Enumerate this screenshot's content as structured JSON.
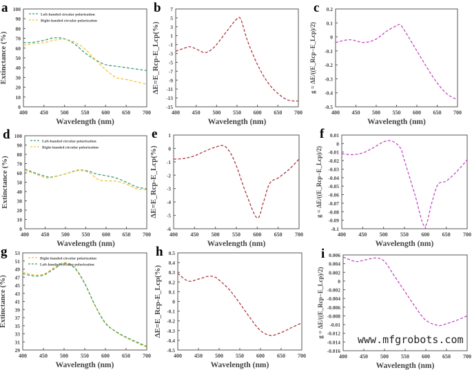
{
  "watermark": "www.mfgrobots.com",
  "colors": {
    "left": "#3aa071",
    "right": "#f2c23c",
    "delta": "#b0353f",
    "g": "#c24ac4"
  },
  "chart_data": [
    {
      "panel": "a",
      "type": "line",
      "xlabel": "Wavelength (nm)",
      "ylabel": "Extinctance (%)",
      "xlim": [
        400,
        700
      ],
      "ylim": [
        0,
        100
      ],
      "xticks": [
        "400",
        "450",
        "500",
        "550",
        "600",
        "650",
        "700"
      ],
      "yticks": [
        "0",
        "10",
        "20",
        "30",
        "40",
        "50",
        "60",
        "70",
        "80",
        "90",
        "100"
      ],
      "legend": "top-left",
      "grid": false,
      "series": [
        {
          "name": "Left-handed circular polarization",
          "color": "left",
          "x": [
            400,
            425,
            450,
            475,
            500,
            525,
            550,
            575,
            600,
            625,
            650,
            675,
            700
          ],
          "y": [
            65.5,
            66,
            68,
            70.5,
            69.5,
            64,
            55,
            48,
            43,
            41.5,
            40,
            38.5,
            37
          ]
        },
        {
          "name": "Right-handed circular polarization",
          "color": "right",
          "x": [
            400,
            425,
            450,
            475,
            500,
            525,
            550,
            575,
            600,
            625,
            650,
            675,
            700
          ],
          "y": [
            63,
            64.5,
            65.5,
            68,
            69,
            66,
            59,
            48,
            38,
            30,
            28,
            25.5,
            23
          ]
        }
      ]
    },
    {
      "panel": "b",
      "type": "line",
      "xlabel": "Wavelength (nm)",
      "ylabel": "ΔE=E_Rcp-E_Lcp(%)",
      "xlim": [
        400,
        700
      ],
      "ylim": [
        -15,
        7
      ],
      "xticks": [
        "400",
        "450",
        "500",
        "550",
        "600",
        "650",
        "700"
      ],
      "yticks": [
        "-15",
        "-13",
        "-11",
        "-9",
        "-7",
        "-5",
        "-3",
        "-1",
        "1",
        "3",
        "5",
        "7"
      ],
      "series": [
        {
          "color": "delta",
          "x": [
            400,
            425,
            435,
            450,
            470,
            485,
            500,
            525,
            550,
            560,
            575,
            600,
            625,
            650,
            675,
            700
          ],
          "y": [
            -2.5,
            -1.7,
            -1.5,
            -2,
            -2.8,
            -2.3,
            -1,
            2,
            4.8,
            4.5,
            0,
            -5.5,
            -9.5,
            -12,
            -13.5,
            -13.7
          ]
        }
      ]
    },
    {
      "panel": "c",
      "type": "line",
      "xlabel": "Wavelength (nm)",
      "ylabel": "g = ΔE/((E_Rcp−E_Lcp)/2)",
      "xlim": [
        400,
        700
      ],
      "ylim": [
        -0.5,
        0.2
      ],
      "xticks": [
        "400",
        "450",
        "500",
        "550",
        "600",
        "650",
        "700"
      ],
      "yticks": [
        "-0.5",
        "-0.4",
        "-0.3",
        "-0.2",
        "-0.1",
        "0",
        "0.1",
        "0.2"
      ],
      "series": [
        {
          "color": "g",
          "x": [
            400,
            435,
            470,
            500,
            525,
            550,
            560,
            575,
            600,
            625,
            650,
            675,
            700
          ],
          "y": [
            -0.04,
            -0.02,
            -0.04,
            -0.015,
            0.04,
            0.08,
            0.085,
            0.02,
            -0.1,
            -0.22,
            -0.33,
            -0.41,
            -0.45
          ]
        }
      ]
    },
    {
      "panel": "d",
      "type": "line",
      "xlabel": "Wavelength (nm)",
      "ylabel": "Extinctance (%)",
      "xlim": [
        400,
        700
      ],
      "ylim": [
        0,
        100
      ],
      "xticks": [
        "400",
        "450",
        "500",
        "550",
        "600",
        "650",
        "700"
      ],
      "yticks": [
        "0",
        "10",
        "20",
        "30",
        "40",
        "50",
        "60",
        "70",
        "80",
        "90",
        "100"
      ],
      "legend": "top-left",
      "series": [
        {
          "name": "Left-handed circular polarization",
          "color": "left",
          "x": [
            400,
            425,
            450,
            465,
            500,
            525,
            540,
            560,
            575,
            600,
            625,
            650,
            675,
            700
          ],
          "y": [
            64,
            60,
            56.5,
            55.5,
            59,
            62.5,
            63,
            61.5,
            59,
            57,
            54.5,
            50,
            45,
            43
          ]
        },
        {
          "name": "Right-handed circular polarization",
          "color": "right",
          "x": [
            400,
            425,
            450,
            465,
            500,
            525,
            540,
            560,
            580,
            600,
            625,
            650,
            675,
            700
          ],
          "y": [
            63,
            59,
            55,
            55,
            59,
            62,
            62.5,
            60,
            53,
            51.5,
            51,
            48,
            43,
            42
          ]
        }
      ]
    },
    {
      "panel": "e",
      "type": "line",
      "xlabel": "Wavelength (nm)",
      "ylabel": "ΔE=E_Rcp-E_Lcp(%)",
      "xlim": [
        400,
        700
      ],
      "ylim": [
        -6,
        1
      ],
      "xticks": [
        "400",
        "450",
        "500",
        "550",
        "600",
        "650",
        "700"
      ],
      "yticks": [
        "-6",
        "-5",
        "-4",
        "-3",
        "-2",
        "-1",
        "0",
        "1"
      ],
      "series": [
        {
          "color": "delta",
          "x": [
            400,
            425,
            450,
            475,
            500,
            520,
            535,
            550,
            575,
            600,
            615,
            630,
            650,
            675,
            700
          ],
          "y": [
            -0.8,
            -0.75,
            -0.55,
            -0.2,
            0.1,
            0.2,
            -0.3,
            -1.3,
            -3.5,
            -5.2,
            -4,
            -2.6,
            -2.2,
            -1.6,
            -0.8
          ]
        }
      ]
    },
    {
      "panel": "f",
      "type": "line",
      "xlabel": "Wavelength (nm)",
      "ylabel": "g = ΔE/((E_Rcp−E_Lcp)/2)",
      "xlim": [
        400,
        700
      ],
      "ylim": [
        -0.1,
        0.01
      ],
      "xticks": [
        "400",
        "450",
        "500",
        "550",
        "600",
        "650",
        "700"
      ],
      "yticks": [
        "-0.1",
        "-0.09",
        "-0.08",
        "-0.07",
        "-0.06",
        "-0.05",
        "-0.04",
        "-0.03",
        "-0.02",
        "-0.01",
        "0",
        "0.01"
      ],
      "series": [
        {
          "color": "g",
          "x": [
            400,
            425,
            450,
            475,
            500,
            520,
            540,
            550,
            575,
            598,
            615,
            630,
            650,
            675,
            700
          ],
          "y": [
            -0.012,
            -0.013,
            -0.011,
            -0.005,
            0.002,
            0.003,
            -0.005,
            -0.02,
            -0.06,
            -0.097,
            -0.07,
            -0.048,
            -0.044,
            -0.033,
            -0.019
          ]
        }
      ]
    },
    {
      "panel": "g",
      "type": "line",
      "xlabel": "Wavelength (nm)",
      "ylabel": "Extinctance (%)",
      "xlim": [
        400,
        700
      ],
      "ylim": [
        29,
        53
      ],
      "xticks": [
        "400",
        "450",
        "500",
        "550",
        "600",
        "650",
        "700"
      ],
      "yticks": [
        "29",
        "31",
        "33",
        "35",
        "37",
        "39",
        "41",
        "43",
        "45",
        "47",
        "49",
        "51",
        "53"
      ],
      "legend": "top-left",
      "series": [
        {
          "name": "Right-handed circular polarization",
          "color": "right",
          "x": [
            400,
            425,
            450,
            475,
            500,
            525,
            550,
            575,
            600,
            625,
            650,
            675,
            700
          ],
          "y": [
            48.3,
            47.6,
            47.7,
            49.3,
            50.6,
            49.5,
            45.5,
            40,
            35.8,
            33.5,
            32,
            30.8,
            29.7
          ]
        },
        {
          "name": "Left-handed circular polarization",
          "color": "left",
          "x": [
            400,
            425,
            450,
            475,
            500,
            525,
            550,
            575,
            600,
            625,
            650,
            675,
            700
          ],
          "y": [
            47.9,
            47.3,
            47.5,
            49,
            50.4,
            49.3,
            45.4,
            40,
            35.6,
            33.6,
            32.2,
            31,
            29.9
          ]
        }
      ]
    },
    {
      "panel": "h",
      "type": "line",
      "xlabel": "Wavelength (nm)",
      "ylabel": "ΔE=E_Rcp-E_Lcp(%)",
      "xlim": [
        400,
        700
      ],
      "ylim": [
        -0.5,
        0.5
      ],
      "xticks": [
        "400",
        "450",
        "500",
        "550",
        "600",
        "650",
        "700"
      ],
      "yticks": [
        "-0.5",
        "-0.4",
        "-0.3",
        "-0.2",
        "-0.1",
        "0",
        "0.1",
        "0.2",
        "0.3",
        "0.4",
        "0.5"
      ],
      "series": [
        {
          "color": "delta",
          "x": [
            400,
            425,
            450,
            475,
            490,
            500,
            525,
            550,
            575,
            600,
            625,
            650,
            675,
            700
          ],
          "y": [
            0.29,
            0.21,
            0.23,
            0.26,
            0.25,
            0.22,
            0.12,
            -0.02,
            -0.17,
            -0.3,
            -0.35,
            -0.32,
            -0.27,
            -0.22
          ]
        }
      ]
    },
    {
      "panel": "i",
      "type": "line",
      "xlabel": "Wavelength (nm)",
      "ylabel": "g = ΔE/((E_Rcp−E_Lcp)/2)",
      "xlim": [
        400,
        700
      ],
      "ylim": [
        -0.016,
        0.006
      ],
      "xticks": [
        "400",
        "450",
        "500",
        "550",
        "600",
        "650",
        "700"
      ],
      "yticks": [
        "-0.016",
        "-0.014",
        "-0.012",
        "-0.01",
        "-0.008",
        "-0.006",
        "-0.004",
        "-0.002",
        "0",
        "0.002",
        "0.004",
        "0.006"
      ],
      "series": [
        {
          "color": "g",
          "x": [
            400,
            430,
            450,
            480,
            500,
            525,
            550,
            575,
            600,
            630,
            650,
            675,
            700
          ],
          "y": [
            0.0055,
            0.0045,
            0.0048,
            0.0053,
            0.0045,
            0.001,
            -0.0025,
            -0.006,
            -0.009,
            -0.0102,
            -0.0098,
            -0.009,
            -0.008
          ]
        }
      ]
    }
  ]
}
